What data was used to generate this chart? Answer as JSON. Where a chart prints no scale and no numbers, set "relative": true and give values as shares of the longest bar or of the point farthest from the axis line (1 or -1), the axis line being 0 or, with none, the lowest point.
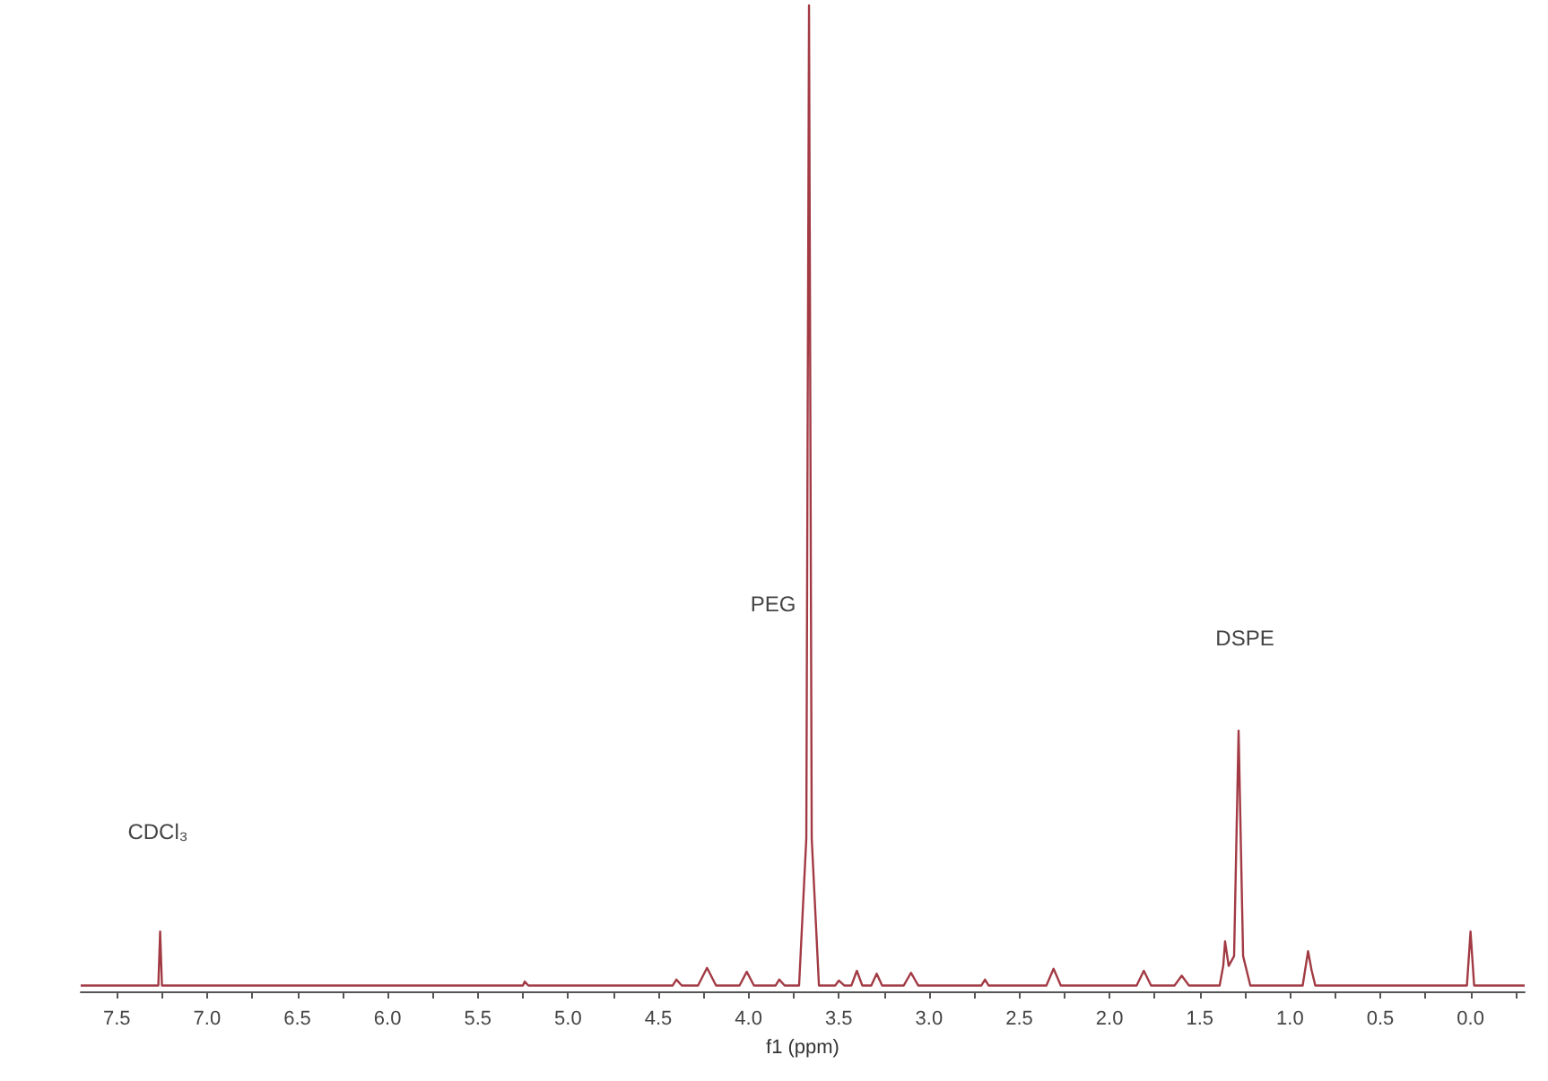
{
  "chart_data": {
    "type": "line",
    "xlabel": "f1 (ppm)",
    "relative": true,
    "marker": "none",
    "line_style": "solid",
    "grid": false,
    "xlim": [
      7.7,
      -0.3
    ],
    "xticks": [
      7.5,
      {
        "value": 7.25,
        "label": null
      },
      {
        "value": 7,
        "label": "7.0"
      },
      {
        "value": 6.75,
        "label": null
      },
      6.5,
      {
        "value": 6.25,
        "label": null
      },
      {
        "value": 6,
        "label": "6.0"
      },
      {
        "value": 5.75,
        "label": null
      },
      5.5,
      {
        "value": 5.25,
        "label": null
      },
      {
        "value": 5,
        "label": "5.0"
      },
      {
        "value": 4.75,
        "label": null
      },
      4.5,
      {
        "value": 4.25,
        "label": null
      },
      {
        "value": 4,
        "label": "4.0"
      },
      {
        "value": 3.75,
        "label": null
      },
      3.5,
      {
        "value": 3.25,
        "label": null
      },
      {
        "value": 3,
        "label": "3.0"
      },
      {
        "value": 2.75,
        "label": null
      },
      2.5,
      {
        "value": 2.25,
        "label": null
      },
      {
        "value": 2,
        "label": "2.0"
      },
      {
        "value": 1.75,
        "label": null
      },
      1.5,
      {
        "value": 1.25,
        "label": null
      },
      {
        "value": 1,
        "label": "1.0"
      },
      {
        "value": 0.75,
        "label": null
      },
      0.5,
      {
        "value": 0.25,
        "label": null
      },
      {
        "value": 0,
        "label": "0.0"
      },
      {
        "value": -0.25,
        "label": null
      }
    ],
    "series": [
      {
        "color": "#a23a44",
        "x": [
          7.7,
          7.3,
          7.27,
          7.26,
          7.25,
          5.25,
          5.24,
          5.22,
          4.42,
          4.4,
          4.37,
          4.28,
          4.23,
          4.18,
          4.05,
          4.01,
          3.97,
          3.85,
          3.83,
          3.8,
          3.72,
          3.68,
          3.665,
          3.65,
          3.61,
          3.52,
          3.5,
          3.47,
          3.43,
          3.4,
          3.37,
          3.32,
          3.29,
          3.26,
          3.14,
          3.1,
          3.06,
          2.71,
          2.69,
          2.67,
          2.35,
          2.31,
          2.27,
          1.85,
          1.81,
          1.77,
          1.64,
          1.6,
          1.56,
          1.39,
          1.37,
          1.36,
          1.34,
          1.31,
          1.285,
          1.26,
          1.22,
          0.93,
          0.9,
          0.88,
          0.86,
          0.02,
          0.0,
          -0.02,
          -0.3
        ],
        "values": [
          0,
          0,
          0,
          0.055,
          0,
          0,
          0.004,
          0,
          0,
          0.006,
          0,
          0,
          0.018,
          0,
          0,
          0.014,
          0,
          0,
          0.006,
          0,
          0,
          0.15,
          1,
          0.15,
          0,
          0,
          0.005,
          0,
          0,
          0.015,
          0,
          0,
          0.012,
          0,
          0,
          0.013,
          0,
          0,
          0.006,
          0,
          0,
          0.017,
          0,
          0,
          0.015,
          0,
          0,
          0.01,
          0,
          0,
          0.02,
          0.045,
          0.02,
          0.03,
          0.26,
          0.03,
          0,
          0,
          0.035,
          0.015,
          0,
          0,
          0.055,
          0,
          0
        ]
      }
    ],
    "annotations": [
      "CDCl₃",
      "PEG",
      "DSPE"
    ]
  }
}
